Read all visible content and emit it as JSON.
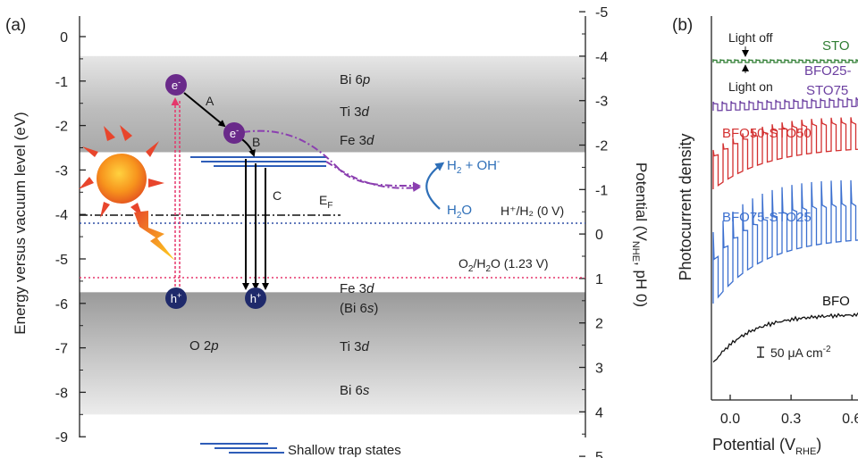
{
  "panel_a": {
    "panel_label": "(a)",
    "left_axis": {
      "label": "Energy versus vacuum level (eV)",
      "ticks": [
        "0",
        "-1",
        "-2",
        "-3",
        "-4",
        "-5",
        "-6",
        "-7",
        "-8",
        "-9"
      ],
      "range": [
        0,
        -9.5
      ]
    },
    "right_axis": {
      "label_main": "Potential (V",
      "label_sub": "NHE",
      "label_end": ", pH 0)",
      "ticks": [
        "-5",
        "-4",
        "-3",
        "-2",
        "-1",
        "0",
        "1",
        "2",
        "3",
        "4",
        "5"
      ]
    },
    "conduction_band": {
      "levels": [
        "Bi 6p",
        "Ti 3d",
        "Fe 3d"
      ],
      "top_ev": -1.0,
      "bottom_ev": -2.6
    },
    "valence_band": {
      "levels": [
        "Fe 3d",
        "(Bi 6s)",
        "Ti 3d",
        "Bi 6s"
      ],
      "center_label": "O 2p",
      "top_ev": -5.75,
      "bottom_ev": -8.5
    },
    "electron_label": "e",
    "electron_sup": "-",
    "hole_label": "h",
    "hole_sup": "+",
    "transitions": [
      "A",
      "B",
      "C"
    ],
    "fermi": {
      "label": "E",
      "sub": "F",
      "ev": -4.25
    },
    "redox_h2": {
      "label": "H⁺/H₂ (0 V)",
      "ev": -4.44,
      "color": "#2f4fa6"
    },
    "redox_o2": {
      "label_main": "O",
      "label_sub": "2",
      "label_rest": "/H",
      "label_sub2": "2",
      "label_end": "O (1.23 V)",
      "ev": -5.67,
      "color": "#e5376b"
    },
    "product": {
      "main": "H",
      "sub": "2",
      "rest": " + OH",
      "sup": "-"
    },
    "reactant": {
      "main": "H",
      "sub": "2",
      "rest": "O"
    },
    "legend": "Shallow trap states",
    "colors": {
      "electron": "#6a2a8a",
      "hole": "#1f2a6b",
      "trap": "#2e5db8",
      "dashdot": "#8b3fb0",
      "product": "#2e6fb8"
    }
  },
  "panel_b": {
    "panel_label": "(b)",
    "ylabel": "Photocurrent density",
    "xlabel_main": "Potential (V",
    "xlabel_sub": "RHE",
    "xticks": [
      "0.0",
      "0.3",
      "0.6"
    ],
    "annotations": {
      "light_off": "Light off",
      "light_on": "Light on",
      "scale": "50 μA cm",
      "scale_sup": "-2"
    },
    "series": [
      {
        "name": "STO",
        "color": "#2e7d32"
      },
      {
        "name": "BFO25-",
        "name2": "STO75",
        "color": "#6b3fa0"
      },
      {
        "name": "BFO50-STO50",
        "color": "#d32f2f"
      },
      {
        "name": "BFO75-STO25",
        "color": "#3b6fcf"
      },
      {
        "name": "BFO",
        "color": "#111111"
      }
    ]
  }
}
